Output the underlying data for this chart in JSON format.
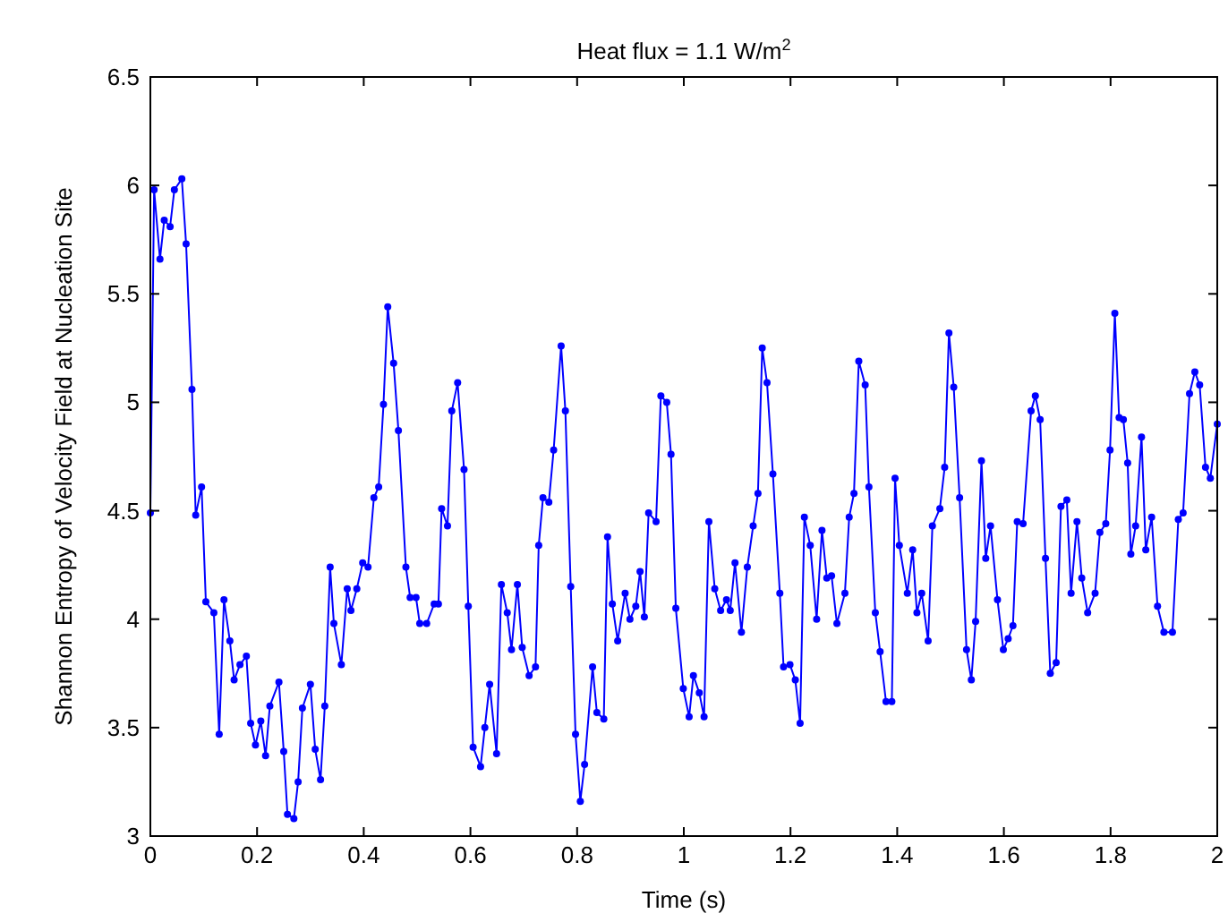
{
  "chart_data": {
    "type": "line",
    "title": "Heat flux = 1.1 W/m$^{2}$",
    "xlabel": "Time (s)",
    "ylabel": "Shannon Entropy of Velocity Field at Nucleation Site",
    "xlim": [
      0,
      2
    ],
    "ylim": [
      3,
      6.5
    ],
    "xticks": [
      0,
      0.2,
      0.4,
      0.6,
      0.8,
      1,
      1.2,
      1.4,
      1.6,
      1.8,
      2
    ],
    "yticks": [
      3,
      3.5,
      4,
      4.5,
      5,
      5.5,
      6,
      6.5
    ],
    "grid": false,
    "marker": "circle",
    "line_style": "solid",
    "series": [
      {
        "color": "#0000ff",
        "x": [
          0,
          0.007,
          0.018,
          0.026,
          0.037,
          0.045,
          0.059,
          0.067,
          0.078,
          0.085,
          0.096,
          0.104,
          0.119,
          0.129,
          0.138,
          0.149,
          0.157,
          0.168,
          0.18,
          0.188,
          0.197,
          0.207,
          0.216,
          0.224,
          0.241,
          0.25,
          0.257,
          0.269,
          0.277,
          0.285,
          0.3,
          0.309,
          0.319,
          0.327,
          0.337,
          0.344,
          0.358,
          0.369,
          0.376,
          0.387,
          0.398,
          0.408,
          0.419,
          0.428,
          0.437,
          0.445,
          0.456,
          0.465,
          0.479,
          0.487,
          0.498,
          0.505,
          0.518,
          0.532,
          0.54,
          0.546,
          0.557,
          0.565,
          0.576,
          0.588,
          0.596,
          0.605,
          0.619,
          0.627,
          0.636,
          0.649,
          0.658,
          0.669,
          0.677,
          0.688,
          0.697,
          0.71,
          0.722,
          0.728,
          0.736,
          0.747,
          0.756,
          0.77,
          0.778,
          0.788,
          0.797,
          0.806,
          0.814,
          0.829,
          0.837,
          0.85,
          0.857,
          0.866,
          0.876,
          0.89,
          0.899,
          0.91,
          0.918,
          0.926,
          0.934,
          0.948,
          0.957,
          0.968,
          0.976,
          0.985,
          0.999,
          1.01,
          1.018,
          1.029,
          1.038,
          1.047,
          1.058,
          1.069,
          1.08,
          1.087,
          1.096,
          1.108,
          1.119,
          1.13,
          1.139,
          1.147,
          1.156,
          1.167,
          1.18,
          1.187,
          1.199,
          1.209,
          1.218,
          1.226,
          1.237,
          1.249,
          1.259,
          1.268,
          1.277,
          1.287,
          1.302,
          1.31,
          1.319,
          1.328,
          1.34,
          1.347,
          1.359,
          1.368,
          1.379,
          1.39,
          1.396,
          1.404,
          1.419,
          1.429,
          1.437,
          1.446,
          1.458,
          1.466,
          1.48,
          1.489,
          1.497,
          1.506,
          1.517,
          1.53,
          1.539,
          1.547,
          1.558,
          1.566,
          1.575,
          1.588,
          1.599,
          1.608,
          1.617,
          1.625,
          1.636,
          1.651,
          1.659,
          1.668,
          1.678,
          1.687,
          1.698,
          1.707,
          1.718,
          1.726,
          1.737,
          1.746,
          1.757,
          1.771,
          1.78,
          1.791,
          1.799,
          1.808,
          1.816,
          1.824,
          1.832,
          1.838,
          1.847,
          1.858,
          1.866,
          1.877,
          1.888,
          1.9,
          1.916,
          1.927,
          1.936,
          1.948,
          1.958,
          1.967,
          1.978,
          1.987,
          2
        ],
        "values": [
          4.49,
          5.98,
          5.66,
          5.84,
          5.81,
          5.98,
          6.03,
          5.73,
          5.06,
          4.48,
          4.61,
          4.08,
          4.03,
          3.47,
          4.09,
          3.9,
          3.72,
          3.79,
          3.83,
          3.52,
          3.42,
          3.53,
          3.37,
          3.6,
          3.71,
          3.39,
          3.1,
          3.08,
          3.25,
          3.59,
          3.7,
          3.4,
          3.26,
          3.6,
          4.24,
          3.98,
          3.79,
          4.14,
          4.04,
          4.14,
          4.26,
          4.24,
          4.56,
          4.61,
          4.99,
          5.44,
          5.18,
          4.87,
          4.24,
          4.1,
          4.1,
          3.98,
          3.98,
          4.07,
          4.07,
          4.51,
          4.43,
          4.96,
          5.09,
          4.69,
          4.06,
          3.41,
          3.32,
          3.5,
          3.7,
          3.38,
          4.16,
          4.03,
          3.86,
          4.16,
          3.87,
          3.74,
          3.78,
          4.34,
          4.56,
          4.54,
          4.78,
          5.26,
          4.96,
          4.15,
          3.47,
          3.16,
          3.33,
          3.78,
          3.57,
          3.54,
          4.38,
          4.07,
          3.9,
          4.12,
          4,
          4.06,
          4.22,
          4.01,
          4.49,
          4.45,
          5.03,
          5,
          4.76,
          4.05,
          3.68,
          3.55,
          3.74,
          3.66,
          3.55,
          4.45,
          4.14,
          4.04,
          4.09,
          4.04,
          4.26,
          3.94,
          4.24,
          4.43,
          4.58,
          5.25,
          5.09,
          4.67,
          4.12,
          3.78,
          3.79,
          3.72,
          3.52,
          4.47,
          4.34,
          4,
          4.41,
          4.19,
          4.2,
          3.98,
          4.12,
          4.47,
          4.58,
          5.19,
          5.08,
          4.61,
          4.03,
          3.85,
          3.62,
          3.62,
          4.65,
          4.34,
          4.12,
          4.32,
          4.03,
          4.12,
          3.9,
          4.43,
          4.51,
          4.7,
          5.32,
          5.07,
          4.56,
          3.86,
          3.72,
          3.99,
          4.73,
          4.28,
          4.43,
          4.09,
          3.86,
          3.91,
          3.97,
          4.45,
          4.44,
          4.96,
          5.03,
          4.92,
          4.28,
          3.75,
          3.8,
          4.52,
          4.55,
          4.12,
          4.45,
          4.19,
          4.03,
          4.12,
          4.4,
          4.44,
          4.78,
          5.41,
          4.93,
          4.92,
          4.72,
          4.3,
          4.43,
          4.84,
          4.32,
          4.47,
          4.06,
          3.94,
          3.94,
          4.46,
          4.49,
          5.04,
          5.14,
          5.08,
          4.7,
          4.65,
          4.9
        ]
      }
    ]
  }
}
